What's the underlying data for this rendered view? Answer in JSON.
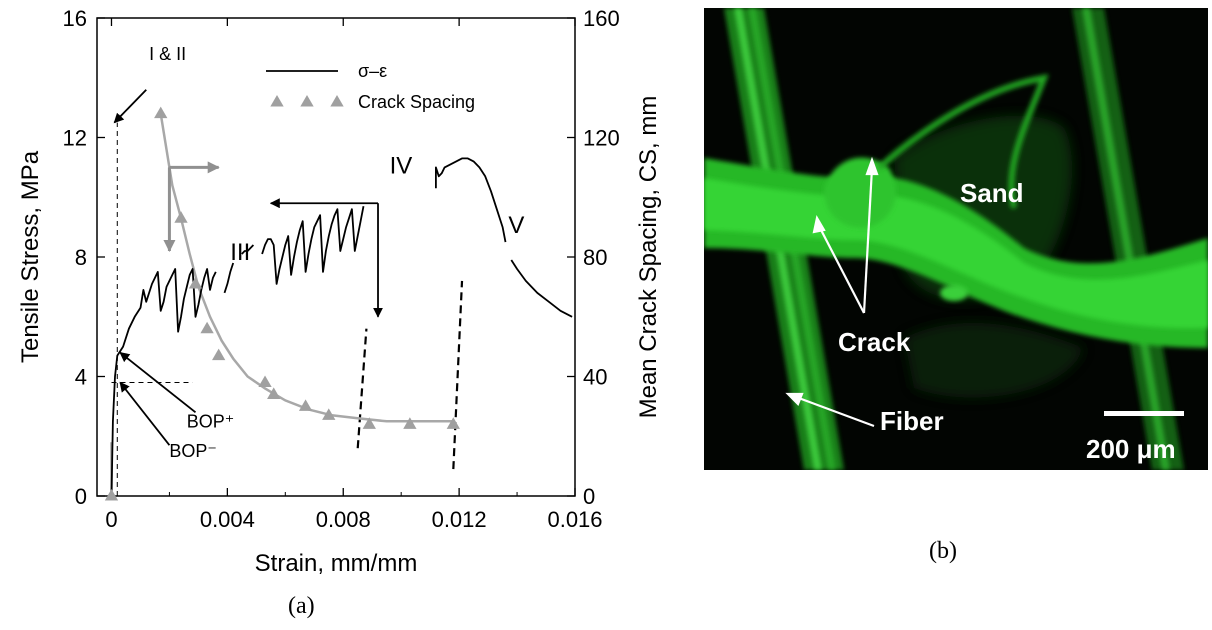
{
  "chart_data": {
    "type": "line",
    "x_axis": {
      "label": "Strain, mm/mm",
      "range": [
        -0.0005,
        0.016
      ],
      "ticks": [
        0,
        0.004,
        0.008,
        0.012,
        0.016
      ],
      "tick_labels": [
        "0",
        "0.004",
        "0.008",
        "0.012",
        "0.016"
      ]
    },
    "y_left": {
      "label": "Tensile Stress, MPa",
      "range": [
        0,
        16
      ],
      "ticks": [
        0,
        4,
        8,
        12,
        16
      ],
      "tick_labels": [
        "0",
        "4",
        "8",
        "12",
        "16"
      ]
    },
    "y_right": {
      "label": "Mean Crack Spacing, CS, mm",
      "range": [
        0,
        160
      ],
      "ticks": [
        0,
        40,
        80,
        120,
        160
      ],
      "tick_labels": [
        "0",
        "40",
        "80",
        "120",
        "160"
      ]
    },
    "legend": {
      "placement": "top-center",
      "entries": [
        {
          "label": "σ–ε",
          "style": "line",
          "color": "#000000"
        },
        {
          "label": "Crack Spacing",
          "style": "triangle-marker",
          "color": "#a0a0a0"
        }
      ]
    },
    "series": [
      {
        "name": "σ–ε",
        "axis": "left",
        "color": "#000000",
        "segments": [
          [
            [
              0,
              0
            ],
            [
              5e-05,
              2.5
            ],
            [
              0.00012,
              4.0
            ],
            [
              0.0002,
              4.7
            ],
            [
              0.0004,
              5.0
            ],
            [
              0.0006,
              5.6
            ],
            [
              0.0008,
              6.0
            ],
            [
              0.001,
              6.3
            ],
            [
              0.0011,
              6.9
            ],
            [
              0.0012,
              6.5
            ],
            [
              0.0013,
              6.8
            ],
            [
              0.0014,
              7.1
            ],
            [
              0.0015,
              7.3
            ],
            [
              0.0016,
              7.5
            ],
            [
              0.0017,
              6.2
            ],
            [
              0.0018,
              6.5
            ],
            [
              0.0019,
              7.0
            ],
            [
              0.0021,
              7.4
            ],
            [
              0.0022,
              7.6
            ],
            [
              0.0023,
              5.5
            ],
            [
              0.0024,
              6.0
            ],
            [
              0.0025,
              6.6
            ],
            [
              0.0026,
              7.0
            ],
            [
              0.0027,
              7.4
            ],
            [
              0.0028,
              7.6
            ],
            [
              0.0029,
              6.0
            ],
            [
              0.003,
              6.4
            ],
            [
              0.0031,
              6.9
            ],
            [
              0.0032,
              7.3
            ],
            [
              0.0033,
              7.6
            ],
            [
              0.0034,
              6.9
            ],
            [
              0.0035,
              7.3
            ],
            [
              0.0036,
              7.5
            ]
          ],
          [
            [
              0.0039,
              6.8
            ],
            [
              0.004,
              7.1
            ],
            [
              0.0041,
              7.5
            ],
            [
              0.0042,
              7.8
            ]
          ],
          [
            [
              0.0045,
              8.1
            ],
            [
              0.0046,
              8.2
            ],
            [
              0.0047,
              8.2
            ],
            [
              0.0048,
              8.3
            ],
            [
              0.0049,
              8.4
            ]
          ],
          [
            [
              0.0052,
              8.1
            ],
            [
              0.0053,
              8.4
            ],
            [
              0.0054,
              8.6
            ],
            [
              0.0055,
              8.6
            ],
            [
              0.0056,
              8.4
            ],
            [
              0.0057,
              7.1
            ],
            [
              0.0058,
              7.6
            ],
            [
              0.0059,
              8.0
            ],
            [
              0.006,
              8.4
            ],
            [
              0.0061,
              8.7
            ],
            [
              0.0062,
              7.4
            ],
            [
              0.0063,
              8.0
            ],
            [
              0.0064,
              8.5
            ],
            [
              0.0065,
              8.9
            ],
            [
              0.0066,
              9.2
            ],
            [
              0.0067,
              7.5
            ],
            [
              0.0068,
              8.1
            ],
            [
              0.0069,
              8.6
            ],
            [
              0.007,
              9.0
            ],
            [
              0.0071,
              9.2
            ],
            [
              0.0072,
              9.4
            ],
            [
              0.0073,
              7.5
            ],
            [
              0.0074,
              8.2
            ],
            [
              0.0075,
              8.7
            ],
            [
              0.0076,
              9.1
            ],
            [
              0.0077,
              9.4
            ],
            [
              0.0078,
              9.6
            ],
            [
              0.0079,
              8.2
            ],
            [
              0.008,
              8.6
            ],
            [
              0.0081,
              9.0
            ],
            [
              0.0082,
              9.3
            ],
            [
              0.0083,
              9.6
            ],
            [
              0.0084,
              8.2
            ],
            [
              0.0085,
              8.7
            ],
            [
              0.0086,
              9.2
            ],
            [
              0.0087,
              9.7
            ]
          ],
          [
            [
              0.0112,
              10.3
            ],
            [
              0.0112,
              11.0
            ],
            [
              0.0113,
              10.7
            ],
            [
              0.0114,
              10.8
            ],
            [
              0.0115,
              11.0
            ],
            [
              0.0117,
              11.1
            ],
            [
              0.0119,
              11.2
            ],
            [
              0.0121,
              11.3
            ],
            [
              0.0123,
              11.3
            ],
            [
              0.0125,
              11.2
            ],
            [
              0.0127,
              11.0
            ],
            [
              0.0129,
              10.7
            ],
            [
              0.0131,
              10.2
            ],
            [
              0.0133,
              9.6
            ],
            [
              0.0135,
              9.0
            ],
            [
              0.0136,
              8.5
            ]
          ],
          [
            [
              0.0138,
              7.9
            ],
            [
              0.014,
              7.6
            ],
            [
              0.0143,
              7.2
            ],
            [
              0.0147,
              6.8
            ],
            [
              0.0151,
              6.5
            ],
            [
              0.0155,
              6.2
            ],
            [
              0.0159,
              6.0
            ]
          ]
        ]
      },
      {
        "name": "Crack Spacing",
        "axis": "right",
        "color": "#a0a0a0",
        "points": [
          [
            0,
            0
          ],
          [
            0.0017,
            128
          ],
          [
            0.0024,
            93
          ],
          [
            0.0029,
            71
          ],
          [
            0.0033,
            56
          ],
          [
            0.0037,
            47
          ],
          [
            0.0053,
            38
          ],
          [
            0.0056,
            34
          ],
          [
            0.0067,
            30
          ],
          [
            0.0075,
            27
          ],
          [
            0.0089,
            24
          ],
          [
            0.0103,
            24
          ],
          [
            0.0118,
            24
          ]
        ],
        "fit": [
          [
            0.0017,
            128
          ],
          [
            0.0019,
            116
          ],
          [
            0.0021,
            104
          ],
          [
            0.0024,
            93
          ],
          [
            0.0027,
            81
          ],
          [
            0.003,
            70
          ],
          [
            0.0034,
            60
          ],
          [
            0.0038,
            52
          ],
          [
            0.0042,
            46
          ],
          [
            0.0047,
            40
          ],
          [
            0.0053,
            36
          ],
          [
            0.006,
            32
          ],
          [
            0.0068,
            29
          ],
          [
            0.0076,
            27
          ],
          [
            0.0085,
            26
          ],
          [
            0.0095,
            25
          ],
          [
            0.0105,
            25
          ],
          [
            0.0118,
            25
          ]
        ]
      }
    ],
    "dashed_guides": [
      {
        "kind": "vline",
        "x": 0.0002,
        "y": [
          0,
          12.5
        ]
      },
      {
        "kind": "hline",
        "y": 3.8,
        "x": [
          0,
          0.0028
        ]
      },
      {
        "kind": "line",
        "from": [
          0.0085,
          1.6
        ],
        "to": [
          0.0088,
          5.6
        ]
      },
      {
        "kind": "line",
        "from": [
          0.0118,
          0.9
        ],
        "to": [
          0.0121,
          7.2
        ]
      }
    ],
    "annotations": [
      {
        "text": "I & II",
        "at": [
          0.0013,
          14.6
        ]
      },
      {
        "text": "III",
        "at": [
          0.0041,
          7.9
        ]
      },
      {
        "text": "IV",
        "at": [
          0.0096,
          10.8
        ]
      },
      {
        "text": "V",
        "at": [
          0.0137,
          8.8
        ]
      },
      {
        "text": "BOP⁺",
        "at": [
          0.0026,
          2.3
        ]
      },
      {
        "text": "BOP⁻",
        "at": [
          0.002,
          1.3
        ]
      }
    ],
    "arrows": [
      {
        "color": "#000000",
        "from": [
          0.0012,
          13.6
        ],
        "to": [
          0.0001,
          12.5
        ]
      },
      {
        "color": "#000000",
        "from": [
          0.0029,
          2.8
        ],
        "to": [
          0.0003,
          4.8
        ]
      },
      {
        "color": "#000000",
        "from": [
          0.002,
          1.7
        ],
        "to": [
          0.0003,
          3.8
        ]
      },
      {
        "color": "#000000",
        "from": [
          0.0092,
          9.8
        ],
        "to": [
          0.0055,
          9.8
        ]
      },
      {
        "color": "#000000",
        "from": [
          0.0092,
          9.8
        ],
        "to": [
          0.0092,
          6.0
        ]
      },
      {
        "color": "#909090",
        "from": [
          0.002,
          11.0
        ],
        "to": [
          0.0037,
          11.0
        ]
      },
      {
        "color": "#909090",
        "from": [
          0.002,
          11.0
        ],
        "to": [
          0.002,
          8.2
        ]
      }
    ]
  },
  "photo": {
    "labels": {
      "sand": "Sand",
      "crack": "Crack",
      "fiber": "Fiber",
      "scale": "200 μm"
    }
  },
  "captions": {
    "a": "(a)",
    "b": "(b)"
  }
}
